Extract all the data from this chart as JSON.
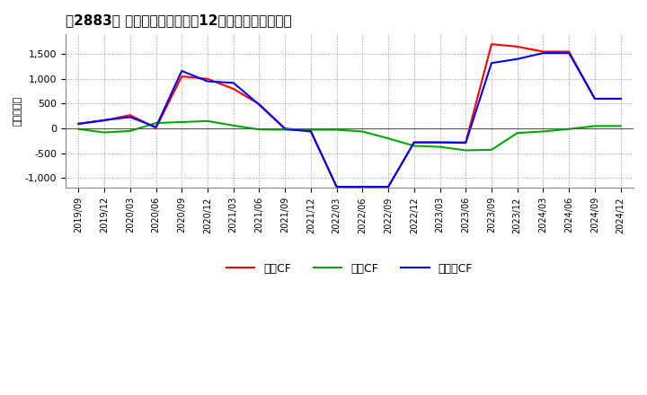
{
  "title": "［2883］ キャッシュフローの12か月移動合計の推移",
  "ylabel": "（百万円）",
  "background_color": "#ffffff",
  "plot_bg_color": "#ffffff",
  "grid_color": "#999999",
  "x_labels": [
    "2019/09",
    "2019/12",
    "2020/03",
    "2020/06",
    "2020/09",
    "2020/12",
    "2021/03",
    "2021/06",
    "2021/09",
    "2021/12",
    "2022/03",
    "2022/06",
    "2022/09",
    "2022/12",
    "2023/03",
    "2023/06",
    "2023/09",
    "2023/12",
    "2024/03",
    "2024/06",
    "2024/09",
    "2024/12"
  ],
  "operating_cf": [
    100,
    160,
    270,
    10,
    1050,
    1000,
    800,
    490,
    0,
    -50,
    -1175,
    -1175,
    -1175,
    -280,
    -280,
    -280,
    1700,
    1650,
    1550,
    1550,
    600,
    600
  ],
  "investing_cf": [
    -10,
    -80,
    -50,
    110,
    130,
    150,
    60,
    -20,
    -25,
    -25,
    -25,
    -60,
    -200,
    -350,
    -370,
    -440,
    -430,
    -90,
    -60,
    -10,
    50,
    50
  ],
  "free_cf": [
    90,
    170,
    230,
    30,
    1160,
    950,
    920,
    480,
    -10,
    -60,
    -1175,
    -1175,
    -1175,
    -280,
    -280,
    -290,
    1320,
    1400,
    1520,
    1520,
    600,
    600
  ],
  "operating_color": "#ff0000",
  "investing_color": "#00aa00",
  "free_color": "#0000ff",
  "ylim": [
    -1200,
    1900
  ],
  "yticks": [
    -1000,
    -500,
    0,
    500,
    1000,
    1500
  ],
  "legend_labels": [
    "営業CF",
    "投資CF",
    "フリーCF"
  ]
}
